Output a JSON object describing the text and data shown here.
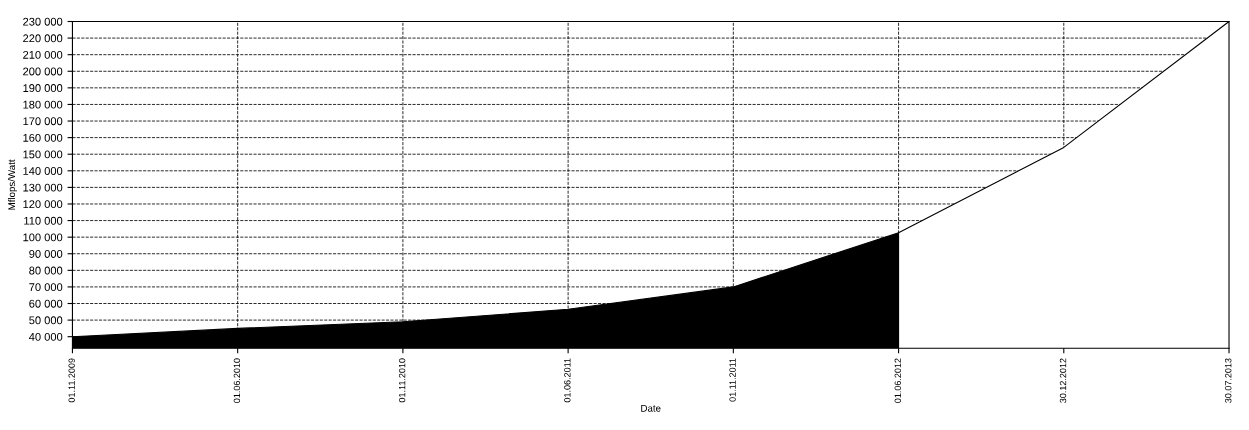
{
  "chart_data": {
    "type": "area",
    "xlabel": "Date",
    "ylabel": "Mflops/Watt",
    "categories": [
      "01.11.2009",
      "01.06.2010",
      "01.11.2010",
      "01.06.2011",
      "01.11.2011",
      "01.06.2012",
      "30.12.2012",
      "30.07.2013"
    ],
    "series": [
      {
        "color": "#000000",
        "values": [
          40000,
          45000,
          49000,
          56500,
          70000,
          102700,
          null,
          null
        ]
      },
      {
        "color": "#ffffff",
        "values": [
          null,
          null,
          null,
          null,
          null,
          102700,
          154100,
          230000
        ]
      }
    ],
    "ylim": [
      33000,
      230000
    ],
    "yticks": [
      {
        "value": 40000,
        "label": "40 000"
      },
      {
        "value": 50000,
        "label": "50 000"
      },
      {
        "value": 60000,
        "label": "60 000"
      },
      {
        "value": 70000,
        "label": "70 000"
      },
      {
        "value": 80000,
        "label": "80 000"
      },
      {
        "value": 90000,
        "label": "90 000"
      },
      {
        "value": 100000,
        "label": "100 000"
      },
      {
        "value": 110000,
        "label": "110 000"
      },
      {
        "value": 120000,
        "label": "120 000"
      },
      {
        "value": 130000,
        "label": "130 000"
      },
      {
        "value": 140000,
        "label": "140 000"
      },
      {
        "value": 150000,
        "label": "150 000"
      },
      {
        "value": 160000,
        "label": "160 000"
      },
      {
        "value": 170000,
        "label": "170 000"
      },
      {
        "value": 180000,
        "label": "180 000"
      },
      {
        "value": 190000,
        "label": "190 000"
      },
      {
        "value": 200000,
        "label": "200 000"
      },
      {
        "value": 210000,
        "label": "210 000"
      },
      {
        "value": 220000,
        "label": "220 000"
      },
      {
        "value": 230000,
        "label": "230 000"
      }
    ],
    "grid": true,
    "line_style": "solid"
  }
}
